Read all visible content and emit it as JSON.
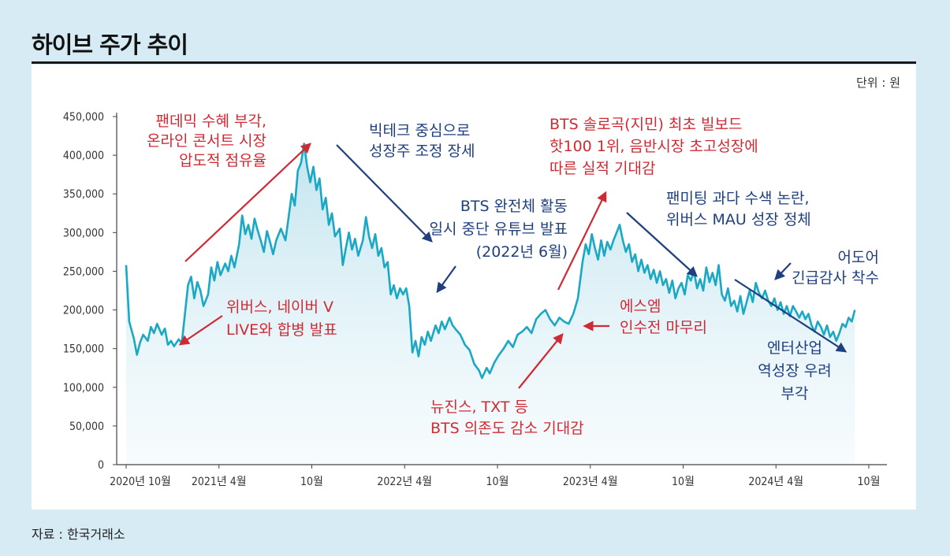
{
  "title": "하이브 주가 추이",
  "source": "자료 : 한국거래소",
  "colors": {
    "line": "#1aa8c4",
    "red": "#cf2a34",
    "blue": "#1f3f7e",
    "background": "#d6ebf4"
  },
  "chart_data": {
    "type": "line",
    "title": "하이브 주가 추이",
    "unit_label": "단위 : 원",
    "ylim": [
      0,
      450000
    ],
    "y_ticks": [
      0,
      50000,
      100000,
      150000,
      200000,
      250000,
      300000,
      350000,
      400000,
      450000
    ],
    "y_tick_labels": [
      "0",
      "50,000",
      "100,000",
      "150,000",
      "200,000",
      "250,000",
      "300,000",
      "350,000",
      "400,000",
      "450,000"
    ],
    "x_ticks": [
      {
        "t": 0,
        "label": "2020년 10월"
      },
      {
        "t": 6,
        "label": "2021년 4월"
      },
      {
        "t": 12,
        "label": "10월"
      },
      {
        "t": 18,
        "label": "2022년 4월"
      },
      {
        "t": 24,
        "label": "10월"
      },
      {
        "t": 30,
        "label": "2023년 4월"
      },
      {
        "t": 36,
        "label": "10월"
      },
      {
        "t": 42,
        "label": "2024년 4월"
      },
      {
        "t": 48,
        "label": "10월"
      }
    ],
    "series": [
      {
        "name": "하이브 주가",
        "points": [
          [
            0.0,
            258000
          ],
          [
            0.2,
            185000
          ],
          [
            0.5,
            163000
          ],
          [
            0.7,
            142000
          ],
          [
            0.9,
            158000
          ],
          [
            1.1,
            168000
          ],
          [
            1.4,
            160000
          ],
          [
            1.6,
            178000
          ],
          [
            1.8,
            170000
          ],
          [
            2.0,
            182000
          ],
          [
            2.3,
            168000
          ],
          [
            2.5,
            176000
          ],
          [
            2.7,
            155000
          ],
          [
            2.9,
            160000
          ],
          [
            3.1,
            153000
          ],
          [
            3.4,
            162000
          ],
          [
            3.6,
            157000
          ],
          [
            3.8,
            195000
          ],
          [
            4.0,
            232000
          ],
          [
            4.2,
            243000
          ],
          [
            4.4,
            215000
          ],
          [
            4.6,
            236000
          ],
          [
            4.8,
            225000
          ],
          [
            5.0,
            205000
          ],
          [
            5.3,
            220000
          ],
          [
            5.5,
            255000
          ],
          [
            5.7,
            238000
          ],
          [
            5.9,
            262000
          ],
          [
            6.1,
            245000
          ],
          [
            6.4,
            260000
          ],
          [
            6.6,
            250000
          ],
          [
            6.8,
            270000
          ],
          [
            7.0,
            255000
          ],
          [
            7.3,
            285000
          ],
          [
            7.5,
            322000
          ],
          [
            7.7,
            298000
          ],
          [
            7.9,
            310000
          ],
          [
            8.1,
            292000
          ],
          [
            8.3,
            318000
          ],
          [
            8.5,
            303000
          ],
          [
            8.7,
            290000
          ],
          [
            8.9,
            275000
          ],
          [
            9.1,
            302000
          ],
          [
            9.3,
            288000
          ],
          [
            9.5,
            272000
          ],
          [
            9.7,
            290000
          ],
          [
            10.0,
            305000
          ],
          [
            10.3,
            290000
          ],
          [
            10.5,
            320000
          ],
          [
            10.7,
            350000
          ],
          [
            10.9,
            335000
          ],
          [
            11.1,
            380000
          ],
          [
            11.3,
            390000
          ],
          [
            11.5,
            415000
          ],
          [
            11.7,
            385000
          ],
          [
            11.9,
            365000
          ],
          [
            12.1,
            385000
          ],
          [
            12.3,
            355000
          ],
          [
            12.5,
            370000
          ],
          [
            12.7,
            330000
          ],
          [
            12.9,
            345000
          ],
          [
            13.1,
            310000
          ],
          [
            13.3,
            325000
          ],
          [
            13.5,
            295000
          ],
          [
            13.8,
            305000
          ],
          [
            14.0,
            258000
          ],
          [
            14.2,
            280000
          ],
          [
            14.4,
            300000
          ],
          [
            14.6,
            278000
          ],
          [
            14.8,
            292000
          ],
          [
            15.0,
            270000
          ],
          [
            15.3,
            290000
          ],
          [
            15.5,
            320000
          ],
          [
            15.7,
            295000
          ],
          [
            15.9,
            280000
          ],
          [
            16.1,
            298000
          ],
          [
            16.3,
            270000
          ],
          [
            16.5,
            280000
          ],
          [
            16.7,
            255000
          ],
          [
            16.9,
            262000
          ],
          [
            17.1,
            220000
          ],
          [
            17.3,
            232000
          ],
          [
            17.5,
            215000
          ],
          [
            17.7,
            228000
          ],
          [
            17.9,
            220000
          ],
          [
            18.1,
            228000
          ],
          [
            18.3,
            205000
          ],
          [
            18.5,
            145000
          ],
          [
            18.7,
            160000
          ],
          [
            18.9,
            140000
          ],
          [
            19.1,
            165000
          ],
          [
            19.3,
            155000
          ],
          [
            19.5,
            172000
          ],
          [
            19.7,
            160000
          ],
          [
            20.0,
            180000
          ],
          [
            20.2,
            170000
          ],
          [
            20.4,
            185000
          ],
          [
            20.6,
            175000
          ],
          [
            20.9,
            190000
          ],
          [
            21.1,
            180000
          ],
          [
            21.3,
            175000
          ],
          [
            21.6,
            168000
          ],
          [
            21.9,
            155000
          ],
          [
            22.2,
            148000
          ],
          [
            22.5,
            130000
          ],
          [
            22.8,
            122000
          ],
          [
            23.0,
            112000
          ],
          [
            23.3,
            125000
          ],
          [
            23.5,
            118000
          ],
          [
            23.8,
            132000
          ],
          [
            24.1,
            142000
          ],
          [
            24.4,
            150000
          ],
          [
            24.7,
            160000
          ],
          [
            25.0,
            152000
          ],
          [
            25.3,
            168000
          ],
          [
            25.6,
            172000
          ],
          [
            25.9,
            178000
          ],
          [
            26.2,
            170000
          ],
          [
            26.5,
            188000
          ],
          [
            26.8,
            195000
          ],
          [
            27.1,
            200000
          ],
          [
            27.4,
            188000
          ],
          [
            27.7,
            180000
          ],
          [
            28.0,
            190000
          ],
          [
            28.3,
            185000
          ],
          [
            28.6,
            182000
          ],
          [
            28.9,
            195000
          ],
          [
            29.2,
            215000
          ],
          [
            29.5,
            262000
          ],
          [
            29.7,
            285000
          ],
          [
            29.9,
            272000
          ],
          [
            30.1,
            298000
          ],
          [
            30.3,
            280000
          ],
          [
            30.5,
            265000
          ],
          [
            30.7,
            290000
          ],
          [
            30.9,
            270000
          ],
          [
            31.1,
            288000
          ],
          [
            31.3,
            278000
          ],
          [
            31.5,
            290000
          ],
          [
            31.7,
            300000
          ],
          [
            31.9,
            310000
          ],
          [
            32.1,
            290000
          ],
          [
            32.3,
            275000
          ],
          [
            32.5,
            285000
          ],
          [
            32.7,
            262000
          ],
          [
            32.9,
            272000
          ],
          [
            33.1,
            250000
          ],
          [
            33.3,
            265000
          ],
          [
            33.5,
            248000
          ],
          [
            33.7,
            258000
          ],
          [
            33.9,
            240000
          ],
          [
            34.1,
            252000
          ],
          [
            34.3,
            235000
          ],
          [
            34.5,
            250000
          ],
          [
            34.7,
            232000
          ],
          [
            34.9,
            240000
          ],
          [
            35.1,
            222000
          ],
          [
            35.3,
            238000
          ],
          [
            35.5,
            215000
          ],
          [
            35.7,
            228000
          ],
          [
            35.9,
            235000
          ],
          [
            36.1,
            220000
          ],
          [
            36.3,
            245000
          ],
          [
            36.5,
            238000
          ],
          [
            36.7,
            250000
          ],
          [
            36.9,
            228000
          ],
          [
            37.1,
            240000
          ],
          [
            37.3,
            225000
          ],
          [
            37.5,
            255000
          ],
          [
            37.7,
            236000
          ],
          [
            37.9,
            248000
          ],
          [
            38.1,
            232000
          ],
          [
            38.3,
            258000
          ],
          [
            38.5,
            220000
          ],
          [
            38.7,
            212000
          ],
          [
            38.9,
            228000
          ],
          [
            39.1,
            205000
          ],
          [
            39.3,
            212000
          ],
          [
            39.5,
            198000
          ],
          [
            39.7,
            218000
          ],
          [
            39.9,
            195000
          ],
          [
            40.1,
            210000
          ],
          [
            40.3,
            225000
          ],
          [
            40.5,
            210000
          ],
          [
            40.7,
            235000
          ],
          [
            40.9,
            222000
          ],
          [
            41.1,
            215000
          ],
          [
            41.3,
            225000
          ],
          [
            41.5,
            212000
          ],
          [
            41.7,
            205000
          ],
          [
            41.9,
            215000
          ],
          [
            42.1,
            200000
          ],
          [
            42.3,
            210000
          ],
          [
            42.5,
            195000
          ],
          [
            42.7,
            205000
          ],
          [
            42.9,
            192000
          ],
          [
            43.1,
            205000
          ],
          [
            43.3,
            198000
          ],
          [
            43.5,
            190000
          ],
          [
            43.7,
            198000
          ],
          [
            43.9,
            188000
          ],
          [
            44.1,
            195000
          ],
          [
            44.3,
            180000
          ],
          [
            44.5,
            172000
          ],
          [
            44.7,
            185000
          ],
          [
            44.9,
            178000
          ],
          [
            45.1,
            168000
          ],
          [
            45.3,
            180000
          ],
          [
            45.5,
            165000
          ],
          [
            45.7,
            172000
          ],
          [
            45.9,
            160000
          ],
          [
            46.1,
            170000
          ],
          [
            46.3,
            182000
          ],
          [
            46.5,
            178000
          ],
          [
            46.7,
            190000
          ],
          [
            46.9,
            185000
          ],
          [
            47.1,
            200000
          ]
        ]
      }
    ],
    "annotations": [
      {
        "color": "red",
        "lines": [
          "팬데믹 수혜 부각,",
          "온라인 콘서트 시장",
          "압도적 점유율"
        ]
      },
      {
        "color": "blue",
        "lines": [
          "빅테크 중심으로",
          "성장주 조정 장세"
        ]
      },
      {
        "color": "blue",
        "lines": [
          "BTS 완전체 활동",
          "일시 중단 유튜브 발표",
          "(2022년 6월)"
        ]
      },
      {
        "color": "red",
        "lines": [
          "BTS 솔로곡(지민) 최초 빌보드",
          "핫100 1위, 음반시장 초고성장에",
          "따른 실적 기대감"
        ]
      },
      {
        "color": "blue",
        "lines": [
          "팬미팅 과다 수색 논란,",
          "위버스 MAU 성장 정체"
        ]
      },
      {
        "color": "blue",
        "lines": [
          "어도어",
          "긴급감사 착수"
        ]
      },
      {
        "color": "red",
        "lines": [
          "위버스, 네이버 V",
          "LIVE와 합병 발표"
        ]
      },
      {
        "color": "red",
        "lines": [
          "에스엠",
          "인수전 마무리"
        ]
      },
      {
        "color": "red",
        "lines": [
          "뉴진스, TXT 등",
          "BTS 의존도 감소 기대감"
        ]
      },
      {
        "color": "blue",
        "lines": [
          "엔터산업",
          "역성장 우려",
          "부각"
        ]
      }
    ]
  }
}
